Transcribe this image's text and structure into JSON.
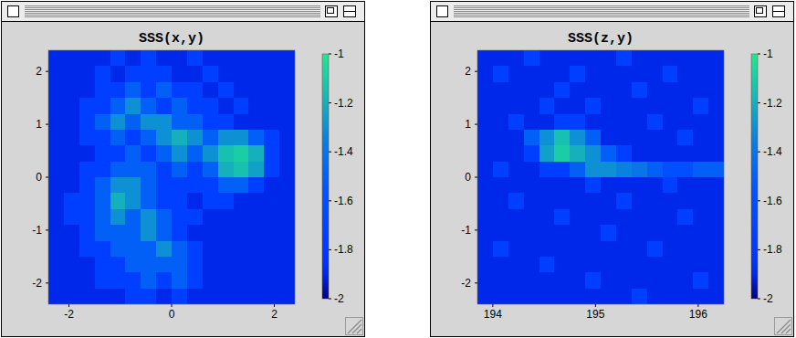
{
  "chart_data": [
    {
      "type": "heatmap",
      "title": "SSS(x,y)",
      "xlim": [
        -2.4,
        2.4
      ],
      "ylim": [
        -2.4,
        2.4
      ],
      "xticks": [
        -2,
        0,
        2
      ],
      "yticks": [
        -2,
        -1,
        0,
        1,
        2
      ],
      "zlim": [
        -2,
        -1
      ],
      "zticks": [
        -1,
        -1.2,
        -1.4,
        -1.6,
        -1.8,
        -2
      ],
      "z": [
        [
          -1.9,
          -1.9,
          -1.9,
          -1.9,
          -1.75,
          -1.9,
          -1.75,
          -1.9,
          -1.9,
          -1.75,
          -1.9,
          -1.9,
          -1.9,
          -1.9,
          -1.9,
          -1.9
        ],
        [
          -1.9,
          -1.9,
          -1.9,
          -1.75,
          -1.9,
          -1.75,
          -1.75,
          -1.75,
          -1.9,
          -1.9,
          -1.75,
          -1.9,
          -1.9,
          -1.9,
          -1.9,
          -1.9
        ],
        [
          -1.9,
          -1.9,
          -1.9,
          -1.75,
          -1.75,
          -1.5,
          -1.75,
          -1.5,
          -1.75,
          -1.75,
          -1.9,
          -1.75,
          -1.9,
          -1.9,
          -1.9,
          -1.9
        ],
        [
          -1.9,
          -1.9,
          -1.75,
          -1.75,
          -1.5,
          -1.3,
          -1.5,
          -1.75,
          -1.5,
          -1.75,
          -1.75,
          -1.9,
          -1.75,
          -1.9,
          -1.9,
          -1.9
        ],
        [
          -1.9,
          -1.9,
          -1.75,
          -1.5,
          -1.3,
          -1.5,
          -1.3,
          -1.3,
          -1.5,
          -1.5,
          -1.75,
          -1.75,
          -1.9,
          -1.9,
          -1.9,
          -1.9
        ],
        [
          -1.9,
          -1.9,
          -1.75,
          -1.75,
          -1.5,
          -1.75,
          -1.5,
          -1.3,
          -1.2,
          -1.3,
          -1.5,
          -1.3,
          -1.3,
          -1.5,
          -1.75,
          -1.9
        ],
        [
          -1.9,
          -1.9,
          -1.9,
          -1.75,
          -1.75,
          -1.5,
          -1.75,
          -1.5,
          -1.3,
          -1.5,
          -1.3,
          -1.15,
          -1.1,
          -1.2,
          -1.75,
          -1.9
        ],
        [
          -1.9,
          -1.9,
          -1.75,
          -1.75,
          -1.5,
          -1.5,
          -1.5,
          -1.75,
          -1.5,
          -1.75,
          -1.5,
          -1.2,
          -1.15,
          -1.25,
          -1.75,
          -1.9
        ],
        [
          -1.9,
          -1.9,
          -1.75,
          -1.5,
          -1.3,
          -1.3,
          -1.5,
          -1.75,
          -1.75,
          -1.75,
          -1.75,
          -1.5,
          -1.5,
          -1.75,
          -1.9,
          -1.9
        ],
        [
          -1.9,
          -1.75,
          -1.75,
          -1.5,
          -1.2,
          -1.3,
          -1.5,
          -1.75,
          -1.75,
          -1.9,
          -1.75,
          -1.75,
          -1.9,
          -1.9,
          -1.9,
          -1.9
        ],
        [
          -1.9,
          -1.75,
          -1.75,
          -1.5,
          -1.3,
          -1.5,
          -1.3,
          -1.5,
          -1.75,
          -1.75,
          -1.9,
          -1.9,
          -1.9,
          -1.9,
          -1.9,
          -1.9
        ],
        [
          -1.9,
          -1.9,
          -1.75,
          -1.5,
          -1.5,
          -1.5,
          -1.3,
          -1.5,
          -1.75,
          -1.9,
          -1.9,
          -1.9,
          -1.9,
          -1.9,
          -1.9,
          -1.9
        ],
        [
          -1.9,
          -1.9,
          -1.75,
          -1.75,
          -1.5,
          -1.5,
          -1.5,
          -1.3,
          -1.5,
          -1.75,
          -1.9,
          -1.9,
          -1.9,
          -1.9,
          -1.9,
          -1.9
        ],
        [
          -1.9,
          -1.9,
          -1.9,
          -1.75,
          -1.75,
          -1.5,
          -1.5,
          -1.5,
          -1.5,
          -1.75,
          -1.9,
          -1.9,
          -1.9,
          -1.9,
          -1.9,
          -1.9
        ],
        [
          -1.9,
          -1.9,
          -1.9,
          -1.75,
          -1.75,
          -1.75,
          -1.5,
          -1.75,
          -1.5,
          -1.75,
          -1.9,
          -1.9,
          -1.9,
          -1.9,
          -1.9,
          -1.9
        ],
        [
          -1.9,
          -1.9,
          -1.9,
          -1.9,
          -1.9,
          -1.75,
          -1.75,
          -1.9,
          -1.75,
          -1.9,
          -1.9,
          -1.9,
          -1.9,
          -1.9,
          -1.9,
          -1.9
        ]
      ]
    },
    {
      "type": "heatmap",
      "title": "SSS(z,y)",
      "xlim": [
        193.85,
        196.25
      ],
      "ylim": [
        -2.4,
        2.4
      ],
      "xticks": [
        194,
        195,
        196
      ],
      "yticks": [
        -2,
        -1,
        0,
        1,
        2
      ],
      "zlim": [
        -2,
        -1
      ],
      "zticks": [
        -1,
        -1.2,
        -1.4,
        -1.6,
        -1.8,
        -2
      ],
      "z": [
        [
          -1.9,
          -1.9,
          -1.9,
          -1.75,
          -1.9,
          -1.9,
          -1.9,
          -1.9,
          -1.9,
          -1.75,
          -1.9,
          -1.9,
          -1.9,
          -1.9,
          -1.9,
          -1.9
        ],
        [
          -1.9,
          -1.75,
          -1.9,
          -1.9,
          -1.9,
          -1.9,
          -1.75,
          -1.9,
          -1.9,
          -1.9,
          -1.9,
          -1.9,
          -1.75,
          -1.9,
          -1.9,
          -1.9
        ],
        [
          -1.9,
          -1.9,
          -1.9,
          -1.9,
          -1.9,
          -1.75,
          -1.9,
          -1.9,
          -1.9,
          -1.9,
          -1.75,
          -1.9,
          -1.9,
          -1.9,
          -1.9,
          -1.9
        ],
        [
          -1.9,
          -1.9,
          -1.9,
          -1.9,
          -1.75,
          -1.9,
          -1.9,
          -1.75,
          -1.9,
          -1.9,
          -1.9,
          -1.9,
          -1.9,
          -1.9,
          -1.75,
          -1.9
        ],
        [
          -1.9,
          -1.9,
          -1.75,
          -1.9,
          -1.9,
          -1.75,
          -1.75,
          -1.9,
          -1.9,
          -1.9,
          -1.9,
          -1.75,
          -1.9,
          -1.9,
          -1.9,
          -1.9
        ],
        [
          -1.9,
          -1.9,
          -1.9,
          -1.5,
          -1.3,
          -1.15,
          -1.3,
          -1.5,
          -1.9,
          -1.9,
          -1.9,
          -1.9,
          -1.9,
          -1.75,
          -1.9,
          -1.9
        ],
        [
          -1.9,
          -1.9,
          -1.9,
          -1.75,
          -1.25,
          -1.1,
          -1.2,
          -1.3,
          -1.5,
          -1.75,
          -1.9,
          -1.9,
          -1.9,
          -1.9,
          -1.9,
          -1.9
        ],
        [
          -1.9,
          -1.75,
          -1.9,
          -1.9,
          -1.75,
          -1.75,
          -1.5,
          -1.3,
          -1.3,
          -1.35,
          -1.4,
          -1.5,
          -1.6,
          -1.6,
          -1.5,
          -1.5
        ],
        [
          -1.9,
          -1.9,
          -1.9,
          -1.9,
          -1.9,
          -1.9,
          -1.9,
          -1.75,
          -1.9,
          -1.9,
          -1.9,
          -1.9,
          -1.75,
          -1.9,
          -1.9,
          -1.9
        ],
        [
          -1.9,
          -1.9,
          -1.75,
          -1.9,
          -1.9,
          -1.9,
          -1.9,
          -1.9,
          -1.9,
          -1.75,
          -1.9,
          -1.9,
          -1.9,
          -1.9,
          -1.9,
          -1.9
        ],
        [
          -1.9,
          -1.9,
          -1.9,
          -1.9,
          -1.9,
          -1.75,
          -1.9,
          -1.9,
          -1.9,
          -1.9,
          -1.9,
          -1.9,
          -1.9,
          -1.75,
          -1.9,
          -1.9
        ],
        [
          -1.9,
          -1.9,
          -1.9,
          -1.9,
          -1.9,
          -1.9,
          -1.9,
          -1.9,
          -1.75,
          -1.9,
          -1.9,
          -1.9,
          -1.9,
          -1.9,
          -1.9,
          -1.9
        ],
        [
          -1.9,
          -1.75,
          -1.9,
          -1.9,
          -1.9,
          -1.9,
          -1.9,
          -1.9,
          -1.9,
          -1.9,
          -1.9,
          -1.75,
          -1.9,
          -1.9,
          -1.9,
          -1.9
        ],
        [
          -1.9,
          -1.9,
          -1.9,
          -1.9,
          -1.75,
          -1.9,
          -1.9,
          -1.9,
          -1.9,
          -1.9,
          -1.9,
          -1.9,
          -1.9,
          -1.9,
          -1.9,
          -1.9
        ],
        [
          -1.9,
          -1.9,
          -1.9,
          -1.9,
          -1.9,
          -1.9,
          -1.9,
          -1.75,
          -1.9,
          -1.9,
          -1.9,
          -1.9,
          -1.9,
          -1.9,
          -1.75,
          -1.9
        ],
        [
          -1.9,
          -1.9,
          -1.9,
          -1.9,
          -1.9,
          -1.9,
          -1.9,
          -1.9,
          -1.9,
          -1.9,
          -1.75,
          -1.9,
          -1.9,
          -1.9,
          -1.9,
          -1.9
        ]
      ]
    }
  ]
}
